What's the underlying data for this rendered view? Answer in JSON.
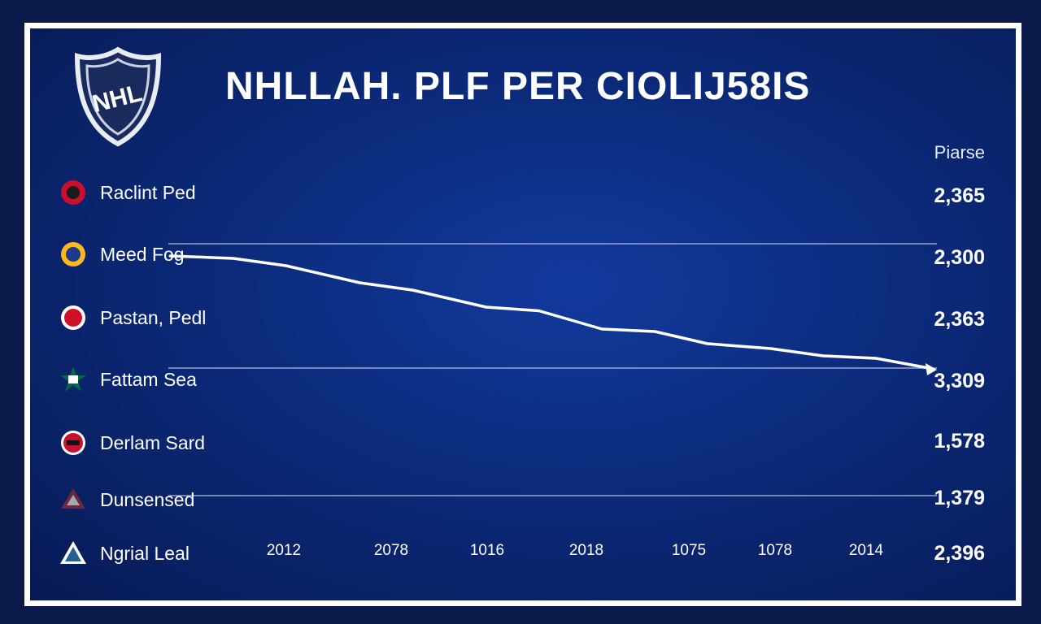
{
  "title": "NHLLAH. PLF PER CIOLIJ58IS",
  "logo_text": "NHL",
  "column_header": "Piarse",
  "teams": [
    {
      "name": "Raclint Ped",
      "value": "2,365",
      "badge_color": "#c8102e"
    },
    {
      "name": "Meed Fog",
      "value": "2,300",
      "badge_color": "#ffb81c"
    },
    {
      "name": "Pastan, Pedl",
      "value": "2,363",
      "badge_color": "#ce1126"
    },
    {
      "name": "Fattam Sea",
      "value": "3,309",
      "badge_color": "#006847"
    },
    {
      "name": "Derlam Sard",
      "value": "1,578",
      "badge_color": "#c8102e"
    },
    {
      "name": "Dunsensed",
      "value": "1,379",
      "badge_color": "#6f263d"
    },
    {
      "name": "Ngrial Leal",
      "value": "2,396",
      "badge_color": "#236192"
    }
  ],
  "chart_data": {
    "type": "line",
    "categories": [
      "2012",
      "2078",
      "1016",
      "2018",
      "1075",
      "1078",
      "2014"
    ],
    "y_reference_lines": [
      "2,300",
      "3,309",
      "1,379"
    ],
    "series": [
      {
        "points": [
          [
            0,
            2300
          ],
          [
            0.6,
            2298
          ],
          [
            1.1,
            2292
          ],
          [
            1.8,
            2278
          ],
          [
            2.3,
            2272
          ],
          [
            3.0,
            2258
          ],
          [
            3.5,
            2255
          ],
          [
            4.1,
            2240
          ],
          [
            4.6,
            2238
          ],
          [
            5.1,
            2228
          ],
          [
            5.7,
            2224
          ],
          [
            6.2,
            2218
          ],
          [
            6.7,
            2216
          ],
          [
            7.2,
            2208
          ]
        ]
      }
    ],
    "ylim": [
      2200,
      2320
    ],
    "colors": {
      "line": "#ffffff",
      "gridline": "#b9c4e6"
    }
  }
}
